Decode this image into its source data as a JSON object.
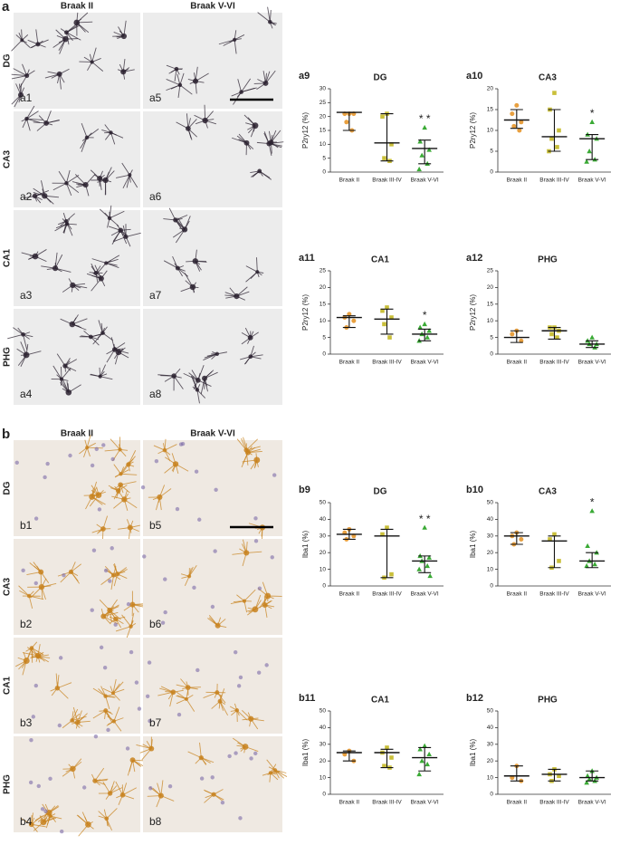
{
  "panels": [
    {
      "letter": "a",
      "headers": [
        "Braak II",
        "Braak V-VI"
      ],
      "background": "#ececec",
      "cell_color": "#2b2230",
      "rows": [
        {
          "region": "DG",
          "images": [
            "a1",
            "a5"
          ]
        },
        {
          "region": "CA3",
          "images": [
            "a2",
            "a6"
          ]
        },
        {
          "region": "CA1",
          "images": [
            "a3",
            "a7"
          ]
        },
        {
          "region": "PHG",
          "images": [
            "a4",
            "a8"
          ]
        }
      ]
    },
    {
      "letter": "b",
      "headers": [
        "Braak II",
        "Braak V-VI"
      ],
      "background": "#efe9e2",
      "cell_color": "#c8831e",
      "rows": [
        {
          "region": "DG",
          "images": [
            "b1",
            "b5"
          ]
        },
        {
          "region": "CA3",
          "images": [
            "b2",
            "b6"
          ]
        },
        {
          "region": "CA1",
          "images": [
            "b3",
            "b7"
          ]
        },
        {
          "region": "PHG",
          "images": [
            "b4",
            "b8"
          ]
        }
      ]
    }
  ],
  "chart_data": [
    {
      "type": "dot",
      "label": "a9",
      "title": "DG",
      "ylabel": "P2ry12 (%)",
      "categories": [
        "Braak II",
        "Braak III-IV",
        "Braak V-VI"
      ],
      "ylim": [
        0,
        30
      ],
      "yticks": [
        0,
        5,
        10,
        15,
        20,
        25,
        30
      ],
      "groups": [
        {
          "color": "#e8a040",
          "marker": "circle",
          "points": [
            21,
            21,
            21,
            18,
            15
          ],
          "median": 21.5,
          "range": [
            15,
            21.5
          ]
        },
        {
          "color": "#c9bf3a",
          "marker": "square",
          "points": [
            21,
            20,
            10,
            5,
            4
          ],
          "median": 10.5,
          "range": [
            4,
            21
          ]
        },
        {
          "color": "#3aaa35",
          "marker": "triangle",
          "points": [
            16,
            11,
            8,
            6,
            3,
            1
          ],
          "median": 8.5,
          "range": [
            3,
            11.5
          ],
          "annotation": "* *"
        }
      ]
    },
    {
      "type": "dot",
      "label": "a10",
      "title": "CA3",
      "ylabel": "P2ry12 (%)",
      "categories": [
        "Braak II",
        "Braak III-IV",
        "Braak V-VI"
      ],
      "ylim": [
        0,
        20
      ],
      "yticks": [
        0,
        5,
        10,
        15,
        20
      ],
      "groups": [
        {
          "color": "#e8a040",
          "marker": "circle",
          "points": [
            16,
            14,
            12,
            11,
            10
          ],
          "median": 12.5,
          "range": [
            10.5,
            15
          ]
        },
        {
          "color": "#c9bf3a",
          "marker": "square",
          "points": [
            19,
            15,
            10,
            8,
            6,
            5
          ],
          "median": 8.5,
          "range": [
            5,
            15
          ]
        },
        {
          "color": "#3aaa35",
          "marker": "triangle",
          "points": [
            12,
            9,
            8,
            5,
            3,
            2.5
          ],
          "median": 8,
          "range": [
            3,
            9
          ],
          "annotation": "*"
        }
      ]
    },
    {
      "type": "dot",
      "label": "a11",
      "title": "CA1",
      "ylabel": "P2ry12 (%)",
      "categories": [
        "Braak II",
        "Braak III-IV",
        "Braak V-VI"
      ],
      "ylim": [
        0,
        25
      ],
      "yticks": [
        0,
        5,
        10,
        15,
        20,
        25
      ],
      "groups": [
        {
          "color": "#e8a040",
          "marker": "circle",
          "points": [
            12,
            11,
            10,
            8
          ],
          "median": 11,
          "range": [
            8,
            11.5
          ]
        },
        {
          "color": "#c9bf3a",
          "marker": "square",
          "points": [
            14,
            13,
            11,
            9,
            5
          ],
          "median": 10.5,
          "range": [
            6,
            13.5
          ]
        },
        {
          "color": "#3aaa35",
          "marker": "triangle",
          "points": [
            9,
            8,
            7,
            6,
            5,
            4
          ],
          "median": 6,
          "range": [
            4,
            7.5
          ],
          "annotation": "*"
        }
      ]
    },
    {
      "type": "dot",
      "label": "a12",
      "title": "PHG",
      "ylabel": "P2ry12 (%)",
      "categories": [
        "Braak II",
        "Braak III-IV",
        "Braak V-VI"
      ],
      "ylim": [
        0,
        25
      ],
      "yticks": [
        0,
        5,
        10,
        15,
        20,
        25
      ],
      "groups": [
        {
          "color": "#e8a040",
          "marker": "circle",
          "points": [
            7,
            6,
            4
          ],
          "median": 5,
          "range": [
            3.5,
            7
          ]
        },
        {
          "color": "#c9bf3a",
          "marker": "square",
          "points": [
            8,
            8,
            7,
            6,
            5
          ],
          "median": 7,
          "range": [
            4.5,
            8
          ]
        },
        {
          "color": "#3aaa35",
          "marker": "triangle",
          "points": [
            5,
            4,
            3,
            3,
            2
          ],
          "median": 3,
          "range": [
            2,
            4
          ]
        }
      ]
    },
    {
      "type": "dot",
      "label": "b9",
      "title": "DG",
      "ylabel": "Iba1 (%)",
      "categories": [
        "Braak II",
        "Braak III-IV",
        "Braak V-VI"
      ],
      "ylim": [
        0,
        50
      ],
      "yticks": [
        0,
        10,
        20,
        30,
        40,
        50
      ],
      "groups": [
        {
          "color": "#e8a040",
          "marker": "circle",
          "points": [
            34,
            32,
            30,
            28
          ],
          "median": 31,
          "range": [
            28,
            34
          ]
        },
        {
          "color": "#c9bf3a",
          "marker": "square",
          "points": [
            35,
            31,
            7,
            5
          ],
          "median": 30,
          "range": [
            5,
            34
          ]
        },
        {
          "color": "#3aaa35",
          "marker": "triangle",
          "points": [
            35,
            18,
            17,
            15,
            12,
            10,
            6
          ],
          "median": 15,
          "range": [
            8,
            18
          ],
          "annotation": "* *"
        }
      ]
    },
    {
      "type": "dot",
      "label": "b10",
      "title": "CA3",
      "ylabel": "Iba1 (%)",
      "categories": [
        "Braak II",
        "Braak III-IV",
        "Braak V-VI"
      ],
      "ylim": [
        0,
        50
      ],
      "yticks": [
        0,
        10,
        20,
        30,
        40,
        50
      ],
      "groups": [
        {
          "color": "#e8a040",
          "marker": "circle",
          "points": [
            32,
            30,
            28,
            25
          ],
          "median": 30,
          "range": [
            25,
            32
          ]
        },
        {
          "color": "#c9bf3a",
          "marker": "square",
          "points": [
            31,
            28,
            15,
            11
          ],
          "median": 27,
          "range": [
            11,
            30
          ]
        },
        {
          "color": "#3aaa35",
          "marker": "triangle",
          "points": [
            45,
            24,
            20,
            15,
            13,
            12
          ],
          "median": 15,
          "range": [
            11,
            20
          ],
          "annotation": "*"
        }
      ]
    },
    {
      "type": "dot",
      "label": "b11",
      "title": "CA1",
      "ylabel": "Iba1 (%)",
      "categories": [
        "Braak II",
        "Braak III-IV",
        "Braak V-VI"
      ],
      "ylim": [
        0,
        50
      ],
      "yticks": [
        0,
        10,
        20,
        30,
        40,
        50
      ],
      "groups": [
        {
          "color": "#e8a040",
          "marker": "circle",
          "points": [
            26,
            24,
            20
          ],
          "median": 25,
          "range": [
            20,
            26
          ]
        },
        {
          "color": "#c9bf3a",
          "marker": "square",
          "points": [
            28,
            25,
            22,
            17,
            16
          ],
          "median": 25,
          "range": [
            16,
            27
          ]
        },
        {
          "color": "#3aaa35",
          "marker": "triangle",
          "points": [
            29,
            27,
            24,
            20,
            18,
            12
          ],
          "median": 22,
          "range": [
            14,
            28
          ]
        }
      ]
    },
    {
      "type": "dot",
      "label": "b12",
      "title": "PHG",
      "ylabel": "Iba1 (%)",
      "categories": [
        "Braak II",
        "Braak III-IV",
        "Braak V-VI"
      ],
      "ylim": [
        0,
        50
      ],
      "yticks": [
        0,
        10,
        20,
        30,
        40,
        50
      ],
      "groups": [
        {
          "color": "#e8a040",
          "marker": "circle",
          "points": [
            17,
            10,
            8
          ],
          "median": 11,
          "range": [
            8,
            17
          ]
        },
        {
          "color": "#c9bf3a",
          "marker": "square",
          "points": [
            15,
            12,
            11,
            8
          ],
          "median": 12,
          "range": [
            8,
            15
          ]
        },
        {
          "color": "#3aaa35",
          "marker": "triangle",
          "points": [
            14,
            11,
            10,
            9,
            8,
            7
          ],
          "median": 10,
          "range": [
            8,
            14
          ]
        }
      ]
    }
  ]
}
